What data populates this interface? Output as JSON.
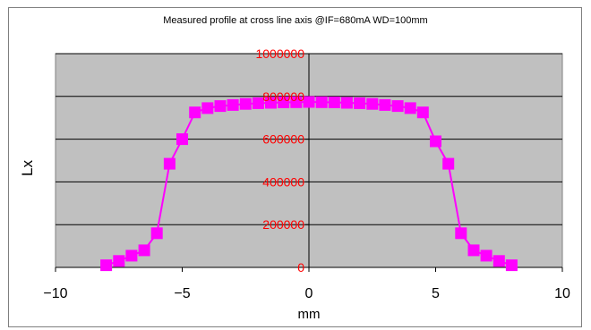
{
  "chart_data": {
    "type": "line",
    "title": "Measured profile at cross line axis @IF=680mA WD=100mm",
    "xlabel": "mm",
    "ylabel": "Lx",
    "xlim": [
      -10,
      10
    ],
    "ylim": [
      0,
      1000000
    ],
    "x_ticks": [
      "−10",
      "−5",
      "0",
      "5",
      "10"
    ],
    "x_tick_values": [
      -10,
      -5,
      0,
      5,
      10
    ],
    "y_ticks": [
      "0",
      "200000",
      "400000",
      "600000",
      "800000",
      "1000000"
    ],
    "y_tick_values": [
      0,
      200000,
      400000,
      600000,
      800000,
      1000000
    ],
    "grid": true,
    "legend": "none",
    "colors": {
      "plot_background": "#c0c0c0",
      "series": "#ff00ff",
      "y_tick_labels": "#ff0000",
      "gridlines": "#000000"
    },
    "series": [
      {
        "marker": "square",
        "x": [
          -8,
          -7.5,
          -7,
          -6.5,
          -6,
          -5.5,
          -5,
          -4.5,
          -4,
          -3.5,
          -3,
          -2.5,
          -2,
          -1.5,
          -1,
          -0.5,
          0,
          0.5,
          1,
          1.5,
          2,
          2.5,
          3,
          3.5,
          4,
          4.5,
          5,
          5.5,
          6,
          6.5,
          7,
          7.5,
          8
        ],
        "y": [
          10000,
          30000,
          55000,
          80000,
          160000,
          485000,
          600000,
          725000,
          745000,
          755000,
          760000,
          765000,
          768000,
          770000,
          772000,
          773000,
          774000,
          773000,
          772000,
          770000,
          768000,
          765000,
          760000,
          755000,
          745000,
          725000,
          590000,
          485000,
          160000,
          80000,
          55000,
          30000,
          10000
        ]
      }
    ]
  }
}
